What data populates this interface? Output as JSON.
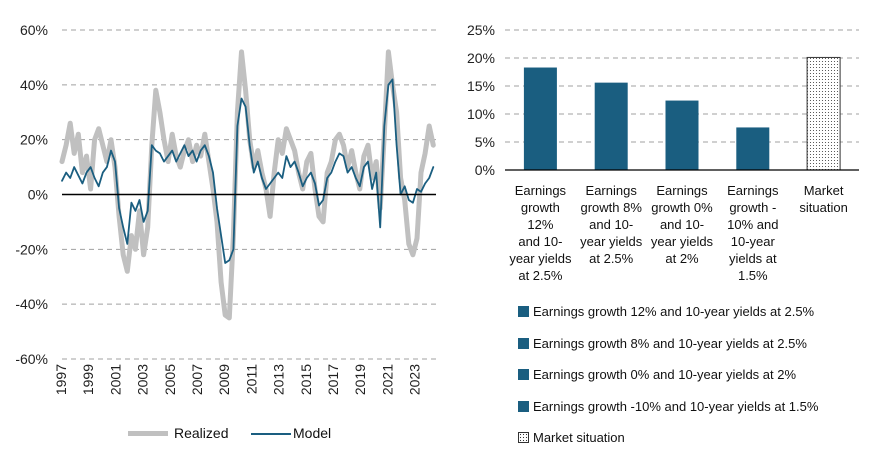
{
  "chart_data": [
    {
      "type": "line",
      "title": "",
      "xlabel": "",
      "ylabel": "",
      "ylim": [
        -60,
        60
      ],
      "xlim": [
        1997,
        2024.5
      ],
      "y_ticks": [
        "60%",
        "40%",
        "20%",
        "0%",
        "-20%",
        "-40%",
        "-60%"
      ],
      "y_tick_values": [
        60,
        40,
        20,
        0,
        -20,
        -40,
        -60
      ],
      "x_ticks": [
        "1997",
        "1999",
        "2001",
        "2003",
        "2005",
        "2007",
        "2009",
        "2011",
        "2013",
        "2015",
        "2017",
        "2019",
        "2021",
        "2023"
      ],
      "x_tick_values": [
        1997,
        1999,
        2001,
        2003,
        2005,
        2007,
        2009,
        2011,
        2013,
        2015,
        2017,
        2019,
        2021,
        2023
      ],
      "grid": "horizontal dashed",
      "legend_position": "bottom",
      "series": [
        {
          "name": "Realized",
          "color": "#c0c0c0",
          "x": [
            1997.0,
            1997.3,
            1997.6,
            1997.9,
            1998.2,
            1998.5,
            1998.8,
            1999.1,
            1999.4,
            1999.7,
            2000.0,
            2000.3,
            2000.6,
            2000.9,
            2001.2,
            2001.5,
            2001.8,
            2002.1,
            2002.4,
            2002.7,
            2003.0,
            2003.3,
            2003.6,
            2003.9,
            2004.2,
            2004.5,
            2004.8,
            2005.1,
            2005.4,
            2005.7,
            2006.0,
            2006.3,
            2006.6,
            2006.9,
            2007.2,
            2007.5,
            2007.8,
            2008.1,
            2008.4,
            2008.7,
            2009.0,
            2009.3,
            2009.6,
            2009.9,
            2010.2,
            2010.5,
            2010.8,
            2011.1,
            2011.4,
            2011.7,
            2012.0,
            2012.3,
            2012.6,
            2012.9,
            2013.2,
            2013.5,
            2013.8,
            2014.1,
            2014.4,
            2014.7,
            2015.0,
            2015.3,
            2015.6,
            2015.9,
            2016.2,
            2016.5,
            2016.8,
            2017.1,
            2017.4,
            2017.7,
            2018.0,
            2018.3,
            2018.6,
            2018.9,
            2019.2,
            2019.5,
            2019.8,
            2020.1,
            2020.4,
            2020.7,
            2021.0,
            2021.3,
            2021.6,
            2021.9,
            2022.2,
            2022.5,
            2022.8,
            2023.1,
            2023.4,
            2023.7,
            2024.0,
            2024.3
          ],
          "values": [
            12,
            18,
            26,
            15,
            22,
            8,
            14,
            2,
            20,
            24,
            18,
            12,
            20,
            10,
            -8,
            -22,
            -28,
            -15,
            -20,
            -6,
            -22,
            -12,
            18,
            38,
            30,
            20,
            12,
            22,
            14,
            10,
            16,
            20,
            12,
            18,
            14,
            22,
            12,
            2,
            -10,
            -32,
            -44,
            -45,
            -15,
            30,
            52,
            38,
            20,
            10,
            16,
            8,
            2,
            -8,
            8,
            20,
            15,
            24,
            20,
            16,
            8,
            2,
            12,
            15,
            2,
            -8,
            -10,
            8,
            12,
            20,
            22,
            18,
            10,
            16,
            8,
            2,
            14,
            18,
            6,
            12,
            -5,
            22,
            52,
            40,
            30,
            6,
            -2,
            -18,
            -22,
            -16,
            8,
            15,
            25,
            18
          ]
        },
        {
          "name": "Model",
          "color": "#1a5e80",
          "x": [
            1997.0,
            1997.3,
            1997.6,
            1997.9,
            1998.2,
            1998.5,
            1998.8,
            1999.1,
            1999.4,
            1999.7,
            2000.0,
            2000.3,
            2000.6,
            2000.9,
            2001.2,
            2001.5,
            2001.8,
            2002.1,
            2002.4,
            2002.7,
            2003.0,
            2003.3,
            2003.6,
            2003.9,
            2004.2,
            2004.5,
            2004.8,
            2005.1,
            2005.4,
            2005.7,
            2006.0,
            2006.3,
            2006.6,
            2006.9,
            2007.2,
            2007.5,
            2007.8,
            2008.1,
            2008.4,
            2008.7,
            2009.0,
            2009.3,
            2009.6,
            2009.9,
            2010.2,
            2010.5,
            2010.8,
            2011.1,
            2011.4,
            2011.7,
            2012.0,
            2012.3,
            2012.6,
            2012.9,
            2013.2,
            2013.5,
            2013.8,
            2014.1,
            2014.4,
            2014.7,
            2015.0,
            2015.3,
            2015.6,
            2015.9,
            2016.2,
            2016.5,
            2016.8,
            2017.1,
            2017.4,
            2017.7,
            2018.0,
            2018.3,
            2018.6,
            2018.9,
            2019.2,
            2019.5,
            2019.8,
            2020.1,
            2020.4,
            2020.7,
            2021.0,
            2021.3,
            2021.6,
            2021.9,
            2022.2,
            2022.5,
            2022.8,
            2023.1,
            2023.4,
            2023.7,
            2024.0,
            2024.3
          ],
          "values": [
            5,
            8,
            6,
            10,
            7,
            4,
            8,
            10,
            6,
            3,
            8,
            10,
            16,
            12,
            -5,
            -12,
            -18,
            -3,
            -6,
            -2,
            -10,
            -6,
            18,
            16,
            15,
            12,
            14,
            16,
            12,
            15,
            18,
            14,
            16,
            12,
            16,
            18,
            14,
            8,
            -5,
            -15,
            -25,
            -24,
            -20,
            25,
            35,
            32,
            18,
            8,
            12,
            6,
            2,
            4,
            6,
            8,
            6,
            14,
            10,
            12,
            8,
            3,
            6,
            8,
            4,
            -4,
            -2,
            6,
            8,
            12,
            15,
            14,
            8,
            10,
            6,
            3,
            10,
            12,
            2,
            8,
            -12,
            25,
            40,
            42,
            18,
            0,
            3,
            -2,
            -3,
            2,
            1,
            4,
            6,
            10
          ]
        }
      ]
    },
    {
      "type": "bar",
      "title": "",
      "xlabel": "",
      "ylabel": "",
      "ylim": [
        0,
        25
      ],
      "y_ticks": [
        "25%",
        "20%",
        "15%",
        "10%",
        "5%",
        "0%"
      ],
      "y_tick_values": [
        25,
        20,
        15,
        10,
        5,
        0
      ],
      "grid": "horizontal dashed",
      "categories": [
        [
          "Earnings",
          "growth 12%",
          "and 10-",
          "year yields",
          "at 2.5%"
        ],
        [
          "Earnings",
          "growth 8%",
          "and 10-",
          "year yields",
          "at 2.5%"
        ],
        [
          "Earnings",
          "growth 0%",
          "and 10-",
          "year yields",
          "at 2%"
        ],
        [
          "Earnings",
          "growth -",
          "10% and",
          "10-year",
          "yields at",
          "1.5%"
        ],
        [
          "Market",
          "situation"
        ]
      ],
      "values": [
        18.3,
        15.6,
        12.4,
        7.6,
        20.1
      ],
      "bar_styles": [
        "solid",
        "solid",
        "solid",
        "solid",
        "dotted"
      ],
      "bar_color": "#1a5e80",
      "legend_position": "bottom",
      "legend": [
        "Earnings growth 12% and 10-year yields at 2.5%",
        "Earnings growth 8% and 10-year yields at 2.5%",
        "Earnings growth 0% and 10-year yields at 2%",
        "Earnings growth -10% and 10-year yields at 1.5%",
        "Market situation"
      ]
    }
  ]
}
